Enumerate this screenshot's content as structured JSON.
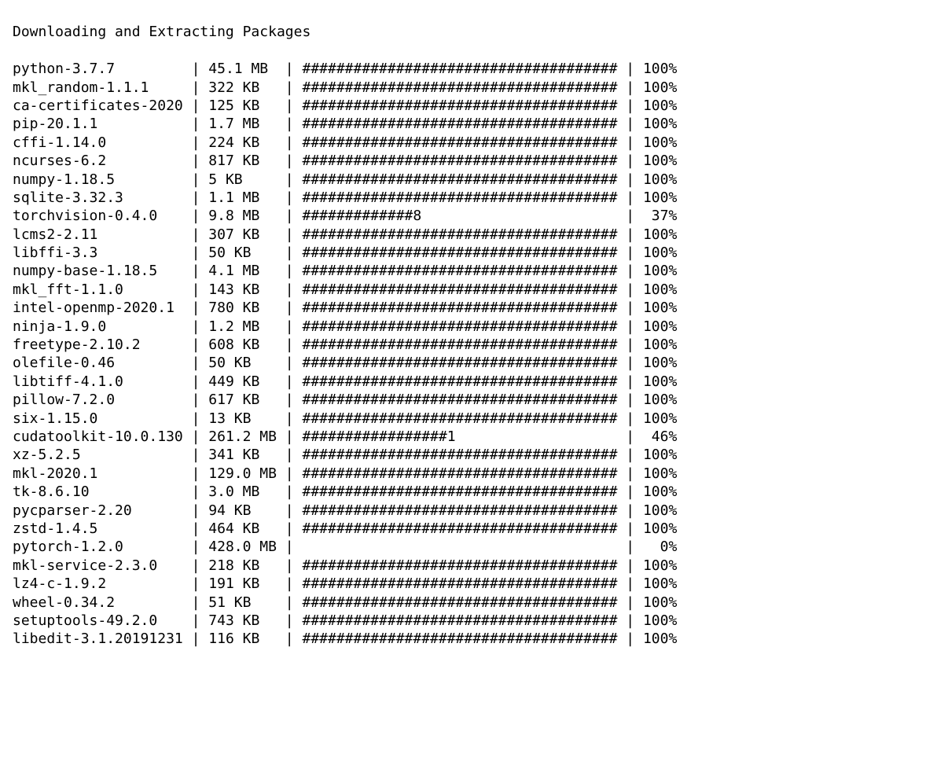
{
  "title": "Downloading and Extracting Packages",
  "col_widths": {
    "name": 20,
    "size": 8,
    "bar": 37,
    "pct": 4
  },
  "bar_full_char": "#",
  "packages": [
    {
      "name": "python-3.7.7",
      "size": "45.1 MB",
      "bar": "#####################################",
      "pct": "100%"
    },
    {
      "name": "mkl_random-1.1.1",
      "size": "322 KB",
      "bar": "#####################################",
      "pct": "100%"
    },
    {
      "name": "ca-certificates-2020",
      "size": "125 KB",
      "bar": "#####################################",
      "pct": "100%"
    },
    {
      "name": "pip-20.1.1",
      "size": "1.7 MB",
      "bar": "#####################################",
      "pct": "100%"
    },
    {
      "name": "cffi-1.14.0",
      "size": "224 KB",
      "bar": "#####################################",
      "pct": "100%"
    },
    {
      "name": "ncurses-6.2",
      "size": "817 KB",
      "bar": "#####################################",
      "pct": "100%"
    },
    {
      "name": "numpy-1.18.5",
      "size": "5 KB",
      "bar": "#####################################",
      "pct": "100%"
    },
    {
      "name": "sqlite-3.32.3",
      "size": "1.1 MB",
      "bar": "#####################################",
      "pct": "100%"
    },
    {
      "name": "torchvision-0.4.0",
      "size": "9.8 MB",
      "bar": "#############8",
      "pct": "37%"
    },
    {
      "name": "lcms2-2.11",
      "size": "307 KB",
      "bar": "#####################################",
      "pct": "100%"
    },
    {
      "name": "libffi-3.3",
      "size": "50 KB",
      "bar": "#####################################",
      "pct": "100%"
    },
    {
      "name": "numpy-base-1.18.5",
      "size": "4.1 MB",
      "bar": "#####################################",
      "pct": "100%"
    },
    {
      "name": "mkl_fft-1.1.0",
      "size": "143 KB",
      "bar": "#####################################",
      "pct": "100%"
    },
    {
      "name": "intel-openmp-2020.1",
      "size": "780 KB",
      "bar": "#####################################",
      "pct": "100%"
    },
    {
      "name": "ninja-1.9.0",
      "size": "1.2 MB",
      "bar": "#####################################",
      "pct": "100%"
    },
    {
      "name": "freetype-2.10.2",
      "size": "608 KB",
      "bar": "#####################################",
      "pct": "100%"
    },
    {
      "name": "olefile-0.46",
      "size": "50 KB",
      "bar": "#####################################",
      "pct": "100%"
    },
    {
      "name": "libtiff-4.1.0",
      "size": "449 KB",
      "bar": "#####################################",
      "pct": "100%"
    },
    {
      "name": "pillow-7.2.0",
      "size": "617 KB",
      "bar": "#####################################",
      "pct": "100%"
    },
    {
      "name": "six-1.15.0",
      "size": "13 KB",
      "bar": "#####################################",
      "pct": "100%"
    },
    {
      "name": "cudatoolkit-10.0.130",
      "size": "261.2 MB",
      "bar": "#################1",
      "pct": "46%"
    },
    {
      "name": "xz-5.2.5",
      "size": "341 KB",
      "bar": "#####################################",
      "pct": "100%"
    },
    {
      "name": "mkl-2020.1",
      "size": "129.0 MB",
      "bar": "#####################################",
      "pct": "100%"
    },
    {
      "name": "tk-8.6.10",
      "size": "3.0 MB",
      "bar": "#####################################",
      "pct": "100%"
    },
    {
      "name": "pycparser-2.20",
      "size": "94 KB",
      "bar": "#####################################",
      "pct": "100%"
    },
    {
      "name": "zstd-1.4.5",
      "size": "464 KB",
      "bar": "#####################################",
      "pct": "100%"
    },
    {
      "name": "pytorch-1.2.0",
      "size": "428.0 MB",
      "bar": "",
      "pct": "0%"
    },
    {
      "name": "mkl-service-2.3.0",
      "size": "218 KB",
      "bar": "#####################################",
      "pct": "100%"
    },
    {
      "name": "lz4-c-1.9.2",
      "size": "191 KB",
      "bar": "#####################################",
      "pct": "100%"
    },
    {
      "name": "wheel-0.34.2",
      "size": "51 KB",
      "bar": "#####################################",
      "pct": "100%"
    },
    {
      "name": "setuptools-49.2.0",
      "size": "743 KB",
      "bar": "#####################################",
      "pct": "100%"
    },
    {
      "name": "libedit-3.1.20191231",
      "size": "116 KB",
      "bar": "#####################################",
      "pct": "100%"
    }
  ]
}
